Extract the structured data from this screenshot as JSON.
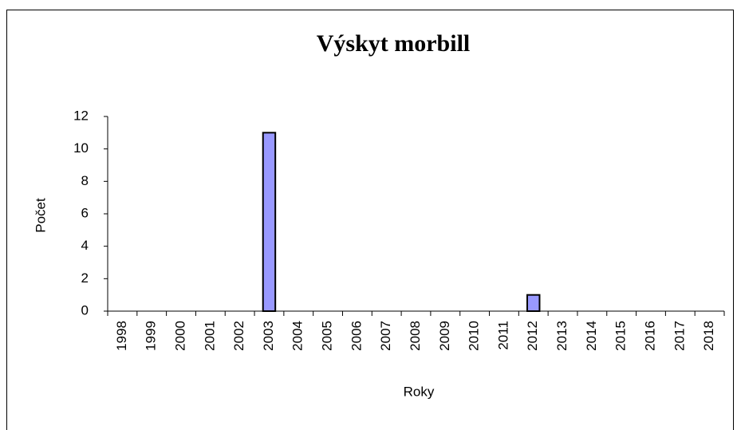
{
  "chart_data": {
    "type": "bar",
    "title": "Výskyt morbill",
    "x_label": "Roky",
    "y_label": "Počet",
    "categories": [
      "1998",
      "1999",
      "2000",
      "2001",
      "2002",
      "2003",
      "2004",
      "2005",
      "2006",
      "2007",
      "2008",
      "2009",
      "2010",
      "2011",
      "2012",
      "2013",
      "2014",
      "2015",
      "2016",
      "2017",
      "2018"
    ],
    "values": [
      0,
      0,
      0,
      0,
      0,
      11,
      0,
      0,
      0,
      0,
      0,
      0,
      0,
      0,
      1,
      0,
      0,
      0,
      0,
      0,
      0
    ],
    "color": "#9999ff",
    "ylim": [
      0,
      12
    ],
    "yticks": [
      0,
      2,
      4,
      6,
      8,
      10,
      12
    ],
    "grid": false
  }
}
